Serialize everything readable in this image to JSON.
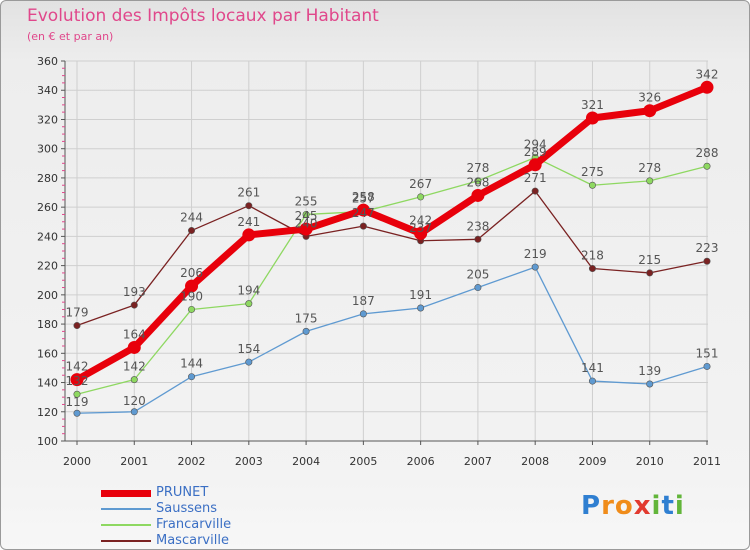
{
  "header": {
    "title": "Evolution des Impôts locaux par Habitant",
    "subtitle": "(en € et par an)"
  },
  "logo": {
    "letters": [
      "P",
      "r",
      "o",
      "x",
      "i",
      "t",
      "i"
    ]
  },
  "colors": {
    "title": "#e0478b",
    "axis": "#555555",
    "grid": "#cfcfcf",
    "legend_text": "#3b6fc4",
    "logo": [
      "#2f7fd1",
      "#f08c1a",
      "#f08c1a",
      "#e23a2f",
      "#62b53a",
      "#2f7fd1",
      "#62b53a"
    ]
  },
  "chart_data": {
    "type": "line",
    "title": "Evolution des Impôts locaux par Habitant",
    "subtitle": "(en € et par an)",
    "xlabel": "",
    "ylabel": "",
    "categories": [
      "2000",
      "2001",
      "2002",
      "2003",
      "2004",
      "2005",
      "2006",
      "2007",
      "2008",
      "2009",
      "2010",
      "2011"
    ],
    "ylim": [
      100,
      360
    ],
    "yticks": [
      100,
      120,
      140,
      160,
      180,
      200,
      220,
      240,
      260,
      280,
      300,
      320,
      340,
      360
    ],
    "grid": true,
    "legend_position": "bottom-left",
    "series": [
      {
        "name": "PRUNET",
        "color": "#e8000b",
        "label_color": "#555555",
        "values": [
          142,
          164,
          206,
          241,
          245,
          258,
          242,
          268,
          289,
          321,
          326,
          342
        ],
        "labels": [
          "142",
          "164",
          "206",
          "241",
          "245",
          "258",
          "242",
          "268",
          "289",
          "321",
          "326",
          "342"
        ]
      },
      {
        "name": "Saussens",
        "color": "#5f9ad1",
        "label_color": "#555555",
        "values": [
          119,
          120,
          144,
          154,
          175,
          187,
          191,
          205,
          219,
          141,
          139,
          151
        ],
        "labels": [
          "119",
          "120",
          "144",
          "154",
          "175",
          "187",
          "191",
          "205",
          "219",
          "141",
          "139",
          "151"
        ]
      },
      {
        "name": "Francarville",
        "color": "#8ed861",
        "label_color": "#555555",
        "values": [
          132,
          142,
          190,
          194,
          255,
          257,
          267,
          278,
          294,
          275,
          278,
          288
        ],
        "labels": [
          "132",
          "142",
          "190",
          "194",
          "255",
          "257",
          "267",
          "278",
          "294",
          "275",
          "278",
          "288"
        ]
      },
      {
        "name": "Mascarville",
        "color": "#7a2222",
        "label_color": "#555555",
        "values": [
          179,
          193,
          244,
          261,
          240,
          247,
          237,
          238,
          271,
          218,
          215,
          223
        ],
        "labels": [
          "179",
          "193",
          "244",
          "261",
          "240",
          "247",
          "237",
          "238",
          "271",
          "218",
          "215",
          "223"
        ]
      }
    ]
  }
}
